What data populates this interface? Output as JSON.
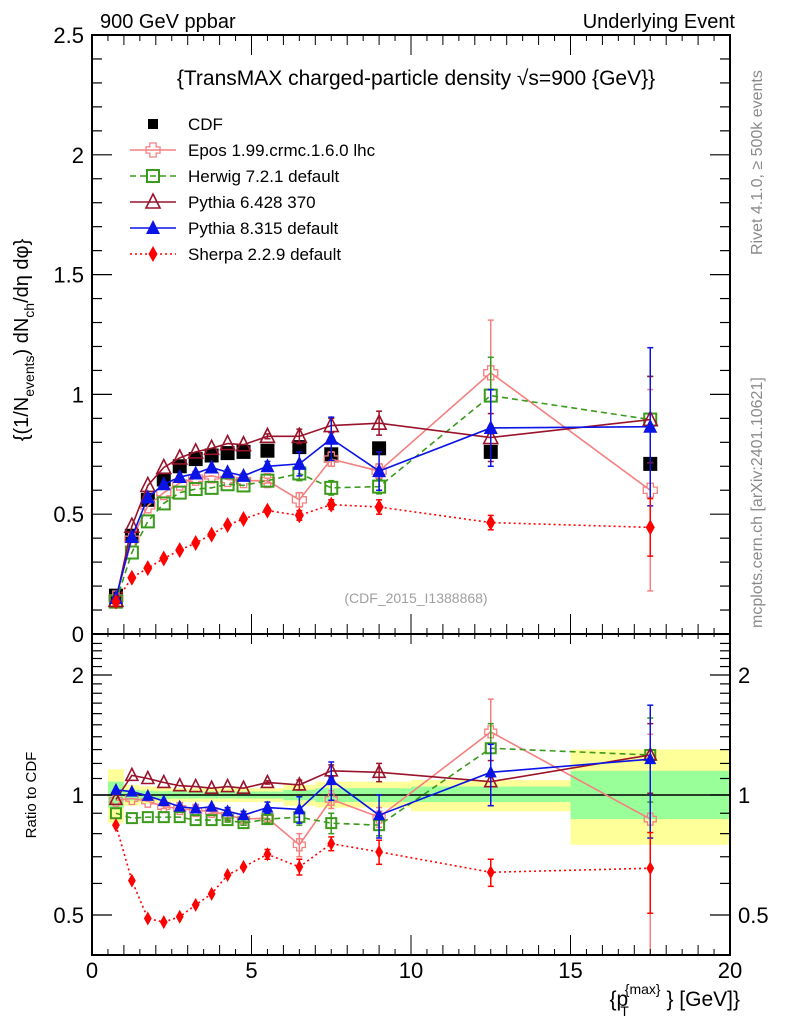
{
  "chart_data": [
    {
      "type": "line",
      "panel": "main",
      "title": "{TransMAX charged-particle density √s=900 {GeV}}",
      "top_left_label": "900 GeV ppbar",
      "top_right_label": "Underlying Event",
      "right_label_1": "Rivet 4.1.0, ≥ 500k events",
      "right_label_2": "mcplots.cern.ch [arXiv:2401.10621]",
      "analysis_label": "(CDF_2015_I1388868)",
      "ylabel": "{(1/N_events) dN_ch/dη dφ}",
      "ylim": [
        0,
        2.5
      ],
      "xlim": [
        0,
        20
      ],
      "yticks": [
        "0",
        "0.5",
        "1",
        "1.5",
        "2",
        "2.5"
      ],
      "legend_placement": "top-left",
      "x": [
        0.75,
        1.25,
        1.75,
        2.25,
        2.75,
        3.25,
        3.75,
        4.25,
        4.75,
        5.5,
        6.5,
        7.5,
        9.0,
        12.5,
        17.5
      ],
      "series": [
        {
          "name": "CDF",
          "color": "#000000",
          "marker": "square",
          "line": "none",
          "values": [
            0.16,
            0.41,
            0.56,
            0.645,
            0.7,
            0.73,
            0.745,
            0.755,
            0.76,
            0.765,
            0.78,
            0.75,
            0.775,
            0.76,
            0.71
          ]
        },
        {
          "name": "Epos 1.99.crmc.1.6.0 lhc",
          "color": "#f48080",
          "marker": "cross-open",
          "line": "solid",
          "values": [
            0.15,
            0.395,
            0.535,
            0.59,
            0.63,
            0.65,
            0.66,
            0.645,
            0.64,
            0.64,
            0.56,
            0.73,
            0.68,
            1.09,
            0.6
          ],
          "errors": [
            0,
            0,
            0,
            0,
            0,
            0,
            0,
            0,
            0,
            0.01,
            0.03,
            0.03,
            0.03,
            0.22,
            0.42
          ]
        },
        {
          "name": "Herwig 7.2.1 default",
          "color": "#3a9a1a",
          "marker": "square-open",
          "line": "dashed",
          "values": [
            0.135,
            0.34,
            0.47,
            0.545,
            0.59,
            0.605,
            0.61,
            0.625,
            0.62,
            0.64,
            0.67,
            0.61,
            0.615,
            0.995,
            0.895
          ],
          "errors": [
            0,
            0,
            0,
            0,
            0,
            0,
            0,
            0,
            0,
            0,
            0.03,
            0.03,
            0.03,
            0.16,
            0.18
          ]
        },
        {
          "name": "Pythia 6.428 370",
          "color": "#99132a",
          "marker": "triangle-open",
          "line": "solid",
          "values": [
            0.14,
            0.45,
            0.62,
            0.695,
            0.735,
            0.76,
            0.775,
            0.795,
            0.79,
            0.825,
            0.825,
            0.87,
            0.88,
            0.82,
            0.895
          ],
          "errors": [
            0,
            0,
            0,
            0,
            0,
            0,
            0,
            0,
            0,
            0.01,
            0.03,
            0.03,
            0.05,
            0.1,
            0.18
          ]
        },
        {
          "name": "Pythia 8.315 default",
          "color": "#0a14e6",
          "marker": "triangle",
          "line": "solid",
          "values": [
            0.15,
            0.405,
            0.57,
            0.625,
            0.655,
            0.67,
            0.695,
            0.675,
            0.66,
            0.7,
            0.71,
            0.815,
            0.68,
            0.86,
            0.865
          ],
          "errors": [
            0,
            0,
            0,
            0,
            0,
            0,
            0,
            0.01,
            0.01,
            0.02,
            0.05,
            0.09,
            0.08,
            0.16,
            0.33
          ]
        },
        {
          "name": "Sherpa 2.2.9 default",
          "color": "#ff0000",
          "marker": "diamond",
          "line": "dotted",
          "values": [
            0.135,
            0.235,
            0.275,
            0.315,
            0.35,
            0.38,
            0.415,
            0.455,
            0.48,
            0.515,
            0.495,
            0.54,
            0.53,
            0.465,
            0.445
          ],
          "errors": [
            0,
            0,
            0,
            0,
            0,
            0,
            0,
            0,
            0,
            0.01,
            0.02,
            0.02,
            0.03,
            0.03,
            0.12
          ]
        }
      ]
    },
    {
      "type": "line",
      "panel": "ratio",
      "ylabel": "Ratio to CDF",
      "xlabel": "{p_T^{max}} [GeV]}",
      "ylim": [
        0.4,
        2.5
      ],
      "yscale": "log",
      "xlim": [
        0,
        20
      ],
      "yticks": [
        "0.5",
        "1",
        "2"
      ],
      "xticks": [
        "0",
        "5",
        "10",
        "15",
        "20"
      ],
      "bins": [
        [
          0.5,
          1.0
        ],
        [
          1.0,
          1.5
        ],
        [
          1.5,
          2.0
        ],
        [
          2.0,
          2.5
        ],
        [
          2.5,
          3.0
        ],
        [
          3.0,
          3.5
        ],
        [
          3.5,
          4.0
        ],
        [
          4.0,
          4.5
        ],
        [
          4.5,
          5.0
        ],
        [
          5.0,
          6.0
        ],
        [
          6.0,
          7.0
        ],
        [
          7.0,
          8.0
        ],
        [
          8.0,
          10.0
        ],
        [
          10.0,
          15.0
        ],
        [
          15.0,
          20.0
        ]
      ],
      "band_green": [
        [
          0.93,
          1.08
        ],
        [
          0.97,
          1.03
        ],
        [
          0.975,
          1.025
        ],
        [
          0.978,
          1.022
        ],
        [
          0.98,
          1.02
        ],
        [
          0.98,
          1.02
        ],
        [
          0.98,
          1.02
        ],
        [
          0.98,
          1.02
        ],
        [
          0.98,
          1.02
        ],
        [
          0.98,
          1.02
        ],
        [
          0.97,
          1.03
        ],
        [
          0.96,
          1.04
        ],
        [
          0.96,
          1.04
        ],
        [
          0.96,
          1.05
        ],
        [
          0.87,
          1.15
        ]
      ],
      "band_yellow": [
        [
          0.85,
          1.16
        ],
        [
          0.94,
          1.06
        ],
        [
          0.95,
          1.05
        ],
        [
          0.955,
          1.045
        ],
        [
          0.96,
          1.04
        ],
        [
          0.96,
          1.04
        ],
        [
          0.96,
          1.04
        ],
        [
          0.96,
          1.04
        ],
        [
          0.96,
          1.04
        ],
        [
          0.96,
          1.04
        ],
        [
          0.94,
          1.06
        ],
        [
          0.93,
          1.08
        ],
        [
          0.93,
          1.08
        ],
        [
          0.91,
          1.09
        ],
        [
          0.75,
          1.3
        ]
      ],
      "x": [
        0.75,
        1.25,
        1.75,
        2.25,
        2.75,
        3.25,
        3.75,
        4.25,
        4.75,
        5.5,
        6.5,
        7.5,
        9.0,
        12.5,
        17.5
      ],
      "series": [
        {
          "name": "Epos 1.99.crmc.1.6.0 lhc",
          "color": "#f48080",
          "marker": "cross-open",
          "line": "solid",
          "values": [
            0.97,
            0.98,
            0.965,
            0.935,
            0.925,
            0.915,
            0.91,
            0.89,
            0.87,
            0.875,
            0.75,
            0.975,
            0.88,
            1.44,
            0.87
          ],
          "errors": [
            0,
            0,
            0,
            0.01,
            0.01,
            0.01,
            0.01,
            0.02,
            0.02,
            0.02,
            0.05,
            0.05,
            0.05,
            0.3,
            0.55
          ]
        },
        {
          "name": "Herwig 7.2.1 default",
          "color": "#3a9a1a",
          "marker": "square-open",
          "line": "dashed",
          "values": [
            0.9,
            0.875,
            0.88,
            0.88,
            0.88,
            0.865,
            0.865,
            0.865,
            0.85,
            0.87,
            0.88,
            0.85,
            0.84,
            1.31,
            1.26
          ],
          "errors": [
            0,
            0,
            0,
            0,
            0,
            0,
            0,
            0.01,
            0.01,
            0.02,
            0.04,
            0.05,
            0.05,
            0.2,
            0.3
          ]
        },
        {
          "name": "Pythia 6.428 370",
          "color": "#99132a",
          "marker": "triangle-open",
          "line": "solid",
          "values": [
            0.975,
            1.12,
            1.1,
            1.075,
            1.055,
            1.05,
            1.04,
            1.05,
            1.04,
            1.075,
            1.06,
            1.15,
            1.14,
            1.08,
            1.26
          ],
          "errors": [
            0,
            0,
            0,
            0,
            0,
            0,
            0,
            0,
            0,
            0.01,
            0.03,
            0.04,
            0.06,
            0.14,
            0.25
          ]
        },
        {
          "name": "Pythia 8.315 default",
          "color": "#0a14e6",
          "marker": "triangle",
          "line": "solid",
          "values": [
            1.03,
            1.02,
            0.995,
            0.965,
            0.935,
            0.925,
            0.935,
            0.91,
            0.89,
            0.93,
            0.92,
            1.09,
            0.89,
            1.14,
            1.23
          ],
          "errors": [
            0,
            0,
            0,
            0,
            0,
            0,
            0,
            0.02,
            0.02,
            0.03,
            0.07,
            0.12,
            0.11,
            0.2,
            0.45
          ]
        },
        {
          "name": "Sherpa 2.2.9 default",
          "color": "#ff0000",
          "marker": "diamond",
          "line": "dotted",
          "values": [
            0.84,
            0.61,
            0.49,
            0.48,
            0.495,
            0.53,
            0.565,
            0.63,
            0.66,
            0.71,
            0.66,
            0.755,
            0.72,
            0.64,
            0.655
          ],
          "errors": [
            0,
            0,
            0,
            0,
            0,
            0,
            0,
            0,
            0,
            0.02,
            0.03,
            0.03,
            0.05,
            0.05,
            0.15
          ]
        }
      ]
    }
  ]
}
